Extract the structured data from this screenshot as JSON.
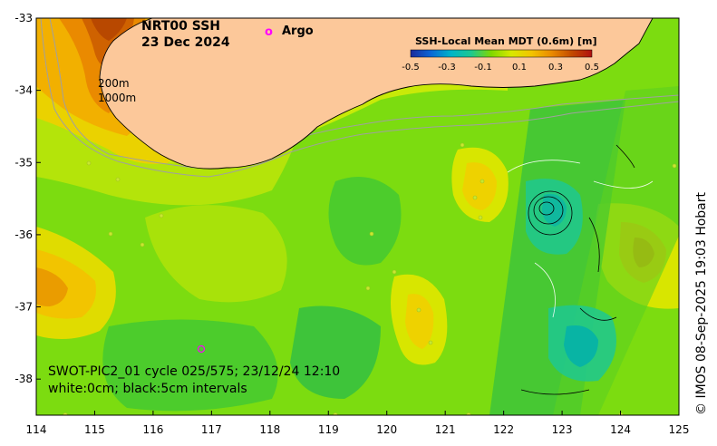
{
  "title": {
    "product": "NRT00 SSH",
    "date": "23 Dec 2024"
  },
  "legend": {
    "argo_marker": "o",
    "argo_label": "Argo"
  },
  "colorbar": {
    "title": "SSH-Local Mean MDT (0.6m) [m]",
    "ticks": [
      "-0.5",
      "-0.3",
      "-0.1",
      "0.1",
      "0.3",
      "0.5"
    ],
    "colors": [
      "#1b2a9c",
      "#0a66d6",
      "#00b4c8",
      "#1ec890",
      "#7fd800",
      "#d8e800",
      "#f2c400",
      "#ea8a00",
      "#c24a00",
      "#b01010"
    ]
  },
  "isobaths": {
    "label_200": "200m",
    "label_1000": "1000m"
  },
  "axes": {
    "xticks": [
      "114",
      "115",
      "116",
      "117",
      "118",
      "119",
      "120",
      "121",
      "122",
      "123",
      "124",
      "125"
    ],
    "yticks": [
      "-33",
      "-34",
      "-35",
      "-36",
      "-37",
      "-38"
    ],
    "lon_range": [
      114,
      125
    ],
    "lat_range": [
      -33,
      -38.5
    ]
  },
  "annotation": {
    "line1": "SWOT-PIC2_01 cycle 025/575; 23/12/24 12:10",
    "line2": "white:0cm; black:5cm intervals"
  },
  "credit": "© IMOS 08-Sep-2025 19:03 Hobart",
  "colors": {
    "land": "#fcc89a",
    "ocean_base": "#7cdc10",
    "argo": "#ff00ff"
  }
}
